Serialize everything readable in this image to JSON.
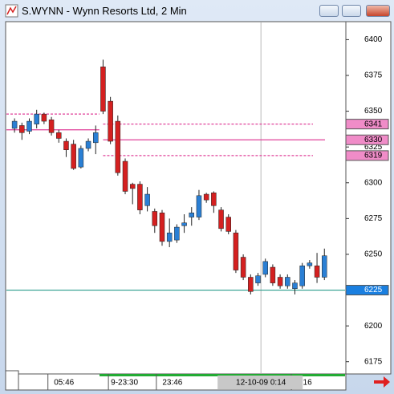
{
  "window": {
    "title": "S.WYNN - Wynn Resorts Ltd, 2 Min"
  },
  "chart_data": {
    "type": "candlestick",
    "open": [
      6338,
      6340,
      6336,
      6341,
      6348,
      6344,
      6335,
      6329,
      6327,
      6311,
      6324,
      6328,
      6381,
      6357,
      6343,
      6315,
      6299,
      6299,
      6284,
      6280,
      6279,
      6259,
      6260,
      6270,
      6276,
      6276,
      6292,
      6293,
      6281,
      6276,
      6265,
      6248,
      6234,
      6230,
      6236,
      6241,
      6234,
      6228,
      6226,
      6228,
      6242,
      6242,
      6234
    ],
    "close": [
      6343,
      6335,
      6343,
      6348,
      6343,
      6335,
      6331,
      6323,
      6310,
      6324,
      6329,
      6335,
      6350,
      6329,
      6307,
      6294,
      6296,
      6281,
      6292,
      6270,
      6259,
      6265,
      6269,
      6272,
      6279,
      6291,
      6288,
      6284,
      6268,
      6266,
      6239,
      6234,
      6224,
      6235,
      6245,
      6230,
      6228,
      6234,
      6230,
      6242,
      6244,
      6234,
      6249
    ],
    "high": [
      6345,
      6342,
      6345,
      6351,
      6349,
      6346,
      6337,
      6331,
      6330,
      6326,
      6331,
      6340,
      6386,
      6360,
      6347,
      6317,
      6300,
      6301,
      6297,
      6282,
      6281,
      6275,
      6271,
      6278,
      6283,
      6295,
      6293,
      6294,
      6283,
      6278,
      6267,
      6250,
      6236,
      6237,
      6247,
      6243,
      6236,
      6236,
      6232,
      6244,
      6246,
      6251,
      6254
    ],
    "low": [
      6335,
      6330,
      6334,
      6338,
      6341,
      6333,
      6328,
      6318,
      6309,
      6310,
      6322,
      6320,
      6348,
      6327,
      6305,
      6292,
      6285,
      6278,
      6280,
      6265,
      6256,
      6255,
      6258,
      6265,
      6270,
      6274,
      6286,
      6279,
      6266,
      6264,
      6237,
      6232,
      6222,
      6228,
      6234,
      6228,
      6226,
      6226,
      6222,
      6226,
      6240,
      6230,
      6232
    ],
    "up_color": "#2a7fd4",
    "down_color": "#d42020",
    "xlim": [
      -1.1,
      44.8
    ],
    "ylim": [
      6167,
      6412
    ],
    "xticks": [
      {
        "value": 6.7,
        "label": "05:46"
      },
      {
        "value": 14.9,
        "label": "9-23:30"
      },
      {
        "value": 21.4,
        "label": "23:46"
      },
      {
        "value": 39.7,
        "label": "16"
      }
    ],
    "cursor": {
      "value": 33.4,
      "label": "12-10-09  0:14"
    },
    "yticks": [
      6175,
      6200,
      6250,
      6275,
      6300,
      6325,
      6350,
      6375,
      6400
    ],
    "levels": [
      {
        "value": 6341,
        "color": "#e0409a",
        "dash": true,
        "from": 12,
        "label": "6341"
      },
      {
        "value": 6330,
        "color": "#e0409a",
        "dash": false,
        "from": 12,
        "label": "6330"
      },
      {
        "value": 6319,
        "color": "#e0409a",
        "dash": true,
        "from": 12,
        "label": "6319"
      },
      {
        "value": 6225,
        "color": "#2a9c8c",
        "dash": false,
        "from": -1.1,
        "label": "6225"
      },
      {
        "value": 6348,
        "color": "#e0409a",
        "dash": true,
        "from": -1.1,
        "to": 11.5
      },
      {
        "value": 6337,
        "color": "#e0409a",
        "dash": false,
        "from": -1.1,
        "to": 11.5
      }
    ]
  }
}
